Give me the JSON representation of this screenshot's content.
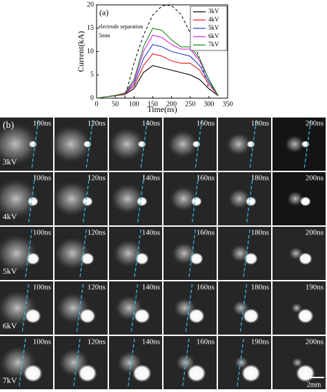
{
  "chart_data": {
    "type": "line",
    "panel_label": "(a)",
    "annotation": [
      "electrode separation",
      "5mm"
    ],
    "x_label": "Time(ns)",
    "y_label": "Current(kA)",
    "x": [
      0,
      25,
      50,
      75,
      100,
      125,
      150,
      175,
      200,
      225,
      250,
      275,
      300,
      325
    ],
    "series": [
      {
        "name": "3kV",
        "color": "#000000",
        "values": [
          0,
          0.3,
          0.5,
          0.8,
          2,
          5.5,
          7,
          6.5,
          6,
          5.5,
          5,
          4,
          2,
          0.5
        ]
      },
      {
        "name": "4kV",
        "color": "#e41a1c",
        "values": [
          0,
          0.3,
          0.5,
          0.9,
          2.5,
          7,
          9.5,
          9,
          8,
          7.5,
          7.5,
          6,
          3,
          0.5
        ]
      },
      {
        "name": "5kV",
        "color": "#1f3fd1",
        "values": [
          0,
          0.3,
          0.6,
          1,
          3,
          8.5,
          11.5,
          11,
          10,
          9.5,
          9,
          7,
          3.5,
          0.5
        ]
      },
      {
        "name": "6kV",
        "color": "#e020e0",
        "values": [
          0,
          0.3,
          0.6,
          1,
          3.5,
          10,
          13.5,
          13,
          11.5,
          10.5,
          10.5,
          8,
          4,
          0.5
        ]
      },
      {
        "name": "7kV",
        "color": "#1a8a1a",
        "values": [
          0,
          0.3,
          0.6,
          1.1,
          4,
          11,
          15,
          14.5,
          12.5,
          11,
          11,
          8.5,
          4,
          0.5
        ]
      }
    ],
    "reference_curve": {
      "color": "#000000",
      "values": [
        null,
        null,
        null,
        0,
        7.5,
        13.5,
        17.8,
        19.8,
        19.9,
        18,
        14,
        8.5,
        2,
        null
      ]
    },
    "xlim": [
      0,
      350
    ],
    "xticks": [
      0,
      50,
      100,
      150,
      200,
      250,
      300,
      350
    ],
    "ylim": [
      0,
      20
    ],
    "yticks": [
      0,
      5,
      10,
      15,
      20
    ]
  },
  "panel_b": {
    "label": "(b)",
    "scale_bar": "2mm",
    "rows": [
      {
        "label": "3kV",
        "times": [
          "100ns",
          "120ns",
          "140ns",
          "160ns",
          "180ns",
          "200ns"
        ]
      },
      {
        "label": "4kV",
        "times": [
          "100ns",
          "120ns",
          "140ns",
          "160ns",
          "180ns",
          "200ns"
        ]
      },
      {
        "label": "5kV",
        "times": [
          "100ns",
          "120ns",
          "140ns",
          "160ns",
          "180ns",
          "200ns"
        ]
      },
      {
        "label": "6kV",
        "times": [
          "100ns",
          "120ns",
          "140ns",
          "160ns",
          "180ns",
          "190ns"
        ]
      },
      {
        "label": "7kV",
        "times": [
          "100ns",
          "120ns",
          "140ns",
          "160ns",
          "190ns",
          "200ns"
        ]
      }
    ]
  }
}
